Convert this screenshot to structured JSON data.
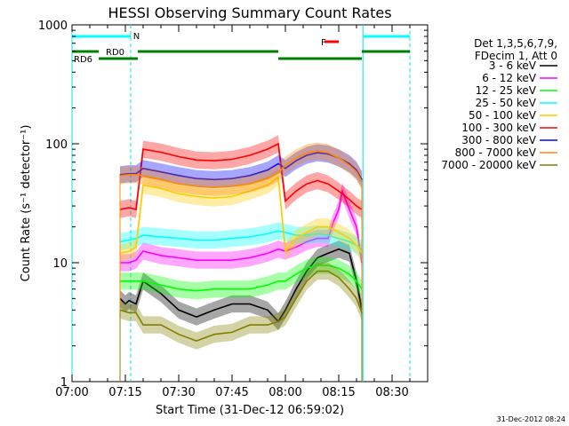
{
  "chart_data": {
    "type": "line",
    "title": "HESSI Observing Summary Count Rates",
    "xlabel": "Start Time (31-Dec-12 06:59:02)",
    "ylabel": "Count Rate (s⁻¹ detector⁻¹)",
    "yscale": "log",
    "ylim": [
      1,
      1000
    ],
    "xlim_minutes": [
      0,
      100
    ],
    "x_ticks": [
      "07:00",
      "07:15",
      "07:30",
      "07:45",
      "08:00",
      "08:15",
      "08:30"
    ],
    "y_ticks": [
      "1",
      "10",
      "100",
      "1000"
    ],
    "timestamp": "31-Dec-2012 08:24",
    "legend": {
      "header": [
        "Det 1,3,5,6,7,9,",
        "FDecim 1, Att 0"
      ],
      "position": "right"
    },
    "annotations": {
      "night_label": "N",
      "flare_label": "F",
      "rd0_label": "RD0",
      "rd6_label": "RD6"
    },
    "segments": {
      "night": [
        [
          -5,
          16.5
        ],
        [
          82,
          95
        ]
      ],
      "flare": [
        [
          71,
          75
        ]
      ],
      "rd0": [
        [
          18.5,
          58
        ],
        [
          81.5,
          95
        ]
      ],
      "rd6": [
        [
          -5,
          7.5
        ],
        [
          7.5,
          18.5
        ],
        [
          58,
          81.5
        ]
      ],
      "cyan_solid_lines": [
        0,
        81.8
      ],
      "cyan_dashed_lines": [
        16.5,
        95
      ]
    },
    "series": [
      {
        "name": "3 - 6 keV",
        "color": "#000000",
        "x": [
          13.5,
          15,
          16,
          18,
          20,
          25,
          30,
          35,
          40,
          45,
          50,
          55,
          58,
          60,
          63,
          66,
          69,
          72,
          75,
          78,
          80,
          81.5
        ],
        "values": [
          5.0,
          4.5,
          4.8,
          4.5,
          7.0,
          5.5,
          4.0,
          3.5,
          4.0,
          4.5,
          4.5,
          4.0,
          3.2,
          4.0,
          6.0,
          8.5,
          11.0,
          12.0,
          13.0,
          12.0,
          7.0,
          4.0
        ]
      },
      {
        "name": "6 - 12 keV",
        "color": "#ff00ff",
        "x": [
          13.5,
          16,
          18,
          20,
          25,
          30,
          35,
          40,
          45,
          50,
          55,
          58,
          60,
          63,
          66,
          69,
          72,
          73.5,
          75,
          76,
          78,
          80,
          81.5
        ],
        "values": [
          10.0,
          10.0,
          10.5,
          12.5,
          11.5,
          11.0,
          10.5,
          10.5,
          10.5,
          11.0,
          12.0,
          13.0,
          12.5,
          13.5,
          15.0,
          16.0,
          16.0,
          22.0,
          28.0,
          40.0,
          28.0,
          20.0,
          10.0
        ]
      },
      {
        "name": "12 - 25 keV",
        "color": "#00ff00",
        "x": [
          13.5,
          16,
          18,
          20,
          25,
          30,
          35,
          40,
          45,
          50,
          55,
          58,
          60,
          63,
          66,
          69,
          72,
          75,
          78,
          80,
          81.5
        ],
        "values": [
          7.0,
          7.0,
          7.0,
          7.0,
          6.5,
          6.0,
          5.8,
          6.0,
          6.0,
          6.0,
          6.5,
          7.0,
          7.0,
          8.0,
          9.0,
          9.5,
          9.5,
          9.0,
          8.0,
          7.0,
          6.0
        ]
      },
      {
        "name": "25 - 50 keV",
        "color": "#00ffff",
        "x": [
          13.5,
          16,
          18,
          20,
          25,
          30,
          35,
          40,
          45,
          50,
          55,
          58,
          60,
          63,
          66,
          69,
          72,
          75,
          78,
          80,
          81.5
        ],
        "values": [
          15.0,
          15.5,
          16.0,
          17.0,
          16.5,
          16.0,
          15.5,
          15.5,
          16.0,
          16.5,
          17.5,
          18.5,
          18.0,
          17.0,
          17.0,
          17.5,
          17.0,
          16.0,
          15.0,
          14.0,
          13.0
        ]
      },
      {
        "name": "50 - 100 keV",
        "color": "#ffcc00",
        "x": [
          13.5,
          16,
          18,
          20,
          25,
          30,
          35,
          40,
          45,
          50,
          55,
          58,
          60,
          63,
          66,
          69,
          72,
          75,
          78,
          80,
          81.5
        ],
        "values": [
          12.0,
          12.5,
          13.5,
          45.0,
          42.0,
          38.0,
          36.0,
          35.0,
          36.0,
          40.0,
          45.0,
          52.0,
          12.5,
          16.0,
          18.0,
          20.0,
          20.0,
          18.0,
          16.0,
          14.0,
          12.0
        ]
      },
      {
        "name": "100 - 300 keV",
        "color": "#ff0000",
        "x": [
          13.5,
          16,
          18,
          20,
          25,
          30,
          35,
          40,
          45,
          50,
          55,
          58,
          60,
          63,
          66,
          69,
          72,
          75,
          78,
          80,
          81.5
        ],
        "values": [
          28.0,
          29.0,
          28.0,
          90.0,
          85.0,
          78.0,
          73.0,
          72.0,
          74.0,
          80.0,
          90.0,
          100.0,
          33.0,
          40.0,
          46.0,
          49.0,
          46.0,
          40.0,
          34.0,
          30.0,
          28.0
        ]
      },
      {
        "name": "300 - 800 keV",
        "color": "#0000ff",
        "x": [
          13.5,
          16,
          18,
          20,
          25,
          30,
          35,
          40,
          45,
          50,
          55,
          58,
          60,
          63,
          66,
          69,
          72,
          75,
          78,
          80,
          81.5
        ],
        "values": [
          55.0,
          56.0,
          56.0,
          62.0,
          58.0,
          54.0,
          51.0,
          50.0,
          51.0,
          54.0,
          60.0,
          68.0,
          62.0,
          72.0,
          80.0,
          84.0,
          82.0,
          76.0,
          68.0,
          60.0,
          50.0
        ]
      },
      {
        "name": "800 - 7000 keV",
        "color": "#ff8800",
        "x": [
          13.5,
          16,
          18,
          20,
          25,
          30,
          35,
          40,
          45,
          50,
          55,
          58,
          60,
          63,
          66,
          69,
          72,
          75,
          78,
          80,
          81.5
        ],
        "values": [
          54.0,
          55.0,
          55.0,
          54.0,
          50.0,
          46.0,
          44.0,
          43.0,
          44.0,
          46.0,
          51.0,
          57.0,
          66.0,
          76.0,
          84.0,
          87.0,
          84.0,
          76.0,
          66.0,
          58.0,
          48.0
        ]
      },
      {
        "name": "7000 - 20000 keV",
        "color": "#808000",
        "x": [
          13.5,
          16,
          18,
          20,
          25,
          30,
          35,
          40,
          45,
          50,
          55,
          58,
          60,
          63,
          66,
          69,
          72,
          75,
          78,
          80,
          81.5
        ],
        "values": [
          4.0,
          3.8,
          3.8,
          3.0,
          3.0,
          2.5,
          2.2,
          2.5,
          2.6,
          3.0,
          3.0,
          3.2,
          3.5,
          5.0,
          7.0,
          8.5,
          8.5,
          7.5,
          6.0,
          5.0,
          3.8
        ]
      }
    ]
  }
}
